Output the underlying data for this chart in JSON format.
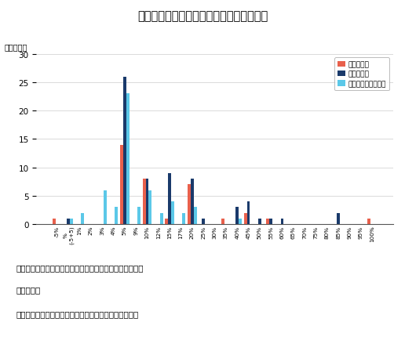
{
  "title": "図８　補正加算の加算率と補正加算適用数",
  "ylabel": "（適用数）",
  "ylim": [
    0,
    30
  ],
  "yticks": [
    0,
    5,
    10,
    15,
    20,
    25,
    30
  ],
  "categories": [
    "-5%",
    "%\n(-5+5)",
    "1%",
    "2%",
    "3%",
    "4%",
    "5%",
    "9%",
    "10%",
    "12%",
    "15%",
    "17%",
    "20%",
    "25%",
    "30%",
    "35%",
    "40%",
    "45%",
    "50%",
    "55%",
    "60%",
    "65%",
    "70%",
    "75%",
    "80%",
    "85%",
    "90%",
    "95%",
    "100%"
  ],
  "series": {
    "抜本改革前": {
      "color": "#e8604c",
      "values": [
        1,
        0,
        0,
        0,
        0,
        0,
        14,
        0,
        8,
        0,
        1,
        0,
        7,
        0,
        0,
        1,
        0,
        2,
        0,
        1,
        0,
        0,
        0,
        0,
        0,
        0,
        0,
        0,
        1
      ]
    },
    "抜本改革後": {
      "color": "#1a3a6b",
      "values": [
        0,
        1,
        0,
        0,
        0,
        0,
        26,
        0,
        8,
        0,
        9,
        0,
        8,
        1,
        0,
        0,
        3,
        4,
        1,
        1,
        1,
        0,
        0,
        0,
        0,
        2,
        0,
        0,
        0
      ]
    },
    "抜本改革後（実質）": {
      "color": "#5bc8e8",
      "values": [
        0,
        1,
        2,
        0,
        6,
        3,
        23,
        3,
        6,
        2,
        4,
        2,
        3,
        0,
        0,
        0,
        1,
        0,
        0,
        0,
        0,
        0,
        0,
        0,
        0,
        0,
        0,
        0,
        0
      ]
    }
  },
  "note1": "注：抜本改革前の加算率は平均的な営業利益率への加算分",
  "note2": "　　を含む",
  "note3": "出所：中医協資料をもとに医薬産業政策研究所にて作成",
  "background_color": "#ffffff"
}
